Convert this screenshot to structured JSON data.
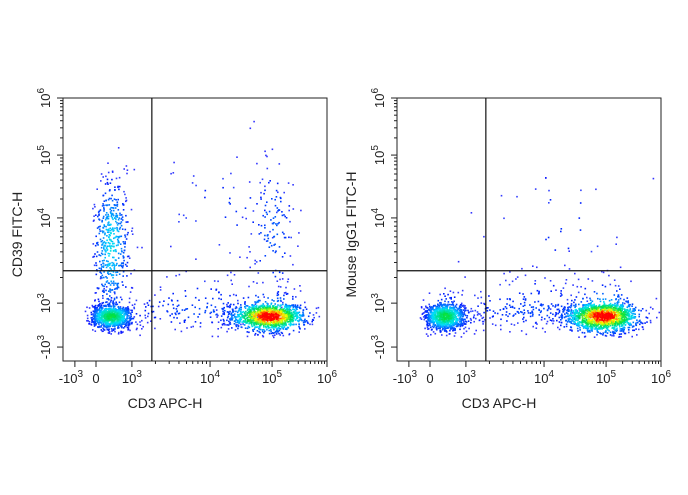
{
  "chart_data": [
    {
      "type": "scatter",
      "subtype": "flow-cytometry-density-dot-plot",
      "xlabel": "CD3 APC-H",
      "ylabel": "CD39 FITC-H",
      "x_scale": "biexponential",
      "y_scale": "biexponential",
      "xlim": [
        -1000,
        1000000
      ],
      "ylim": [
        -1000,
        1000000
      ],
      "x_ticks": [
        {
          "value": -1000,
          "base": "-10",
          "exp": "3"
        },
        {
          "value": 0,
          "base": "0",
          "exp": ""
        },
        {
          "value": 1000,
          "base": "10",
          "exp": "3"
        },
        {
          "value": 10000,
          "base": "10",
          "exp": "4"
        },
        {
          "value": 100000,
          "base": "10",
          "exp": "5"
        },
        {
          "value": 1000000,
          "base": "10",
          "exp": "6"
        }
      ],
      "y_ticks": [
        {
          "value": -1000,
          "base": "-10",
          "exp": "3"
        },
        {
          "value": 1000,
          "base": "10",
          "exp": "3"
        },
        {
          "value": 10000,
          "base": "10",
          "exp": "4"
        },
        {
          "value": 100000,
          "base": "10",
          "exp": "5"
        },
        {
          "value": 1000000,
          "base": "10",
          "exp": "6"
        }
      ],
      "quadrant_gate": {
        "x": 1800,
        "y": 2400
      },
      "grid": false,
      "legend": "none",
      "populations": [
        {
          "x": 400,
          "y": 600,
          "spread_decades": [
            0.3,
            0.2
          ],
          "events": 900,
          "peak_density": 0.45
        },
        {
          "x": 400,
          "y": 5000,
          "spread_decades": [
            0.25,
            0.45
          ],
          "events": 500,
          "peak_density": 0.25
        },
        {
          "x": 90000,
          "y": 600,
          "spread_decades": [
            0.3,
            0.22
          ],
          "events": 1400,
          "peak_density": 1.0
        },
        {
          "x": 100000,
          "y": 8000,
          "spread_decades": [
            0.2,
            0.5
          ],
          "events": 120,
          "peak_density": 0.1
        },
        {
          "x": 8000,
          "y": 800,
          "spread_decades": [
            0.6,
            0.3
          ],
          "events": 200,
          "peak_density": 0.08
        },
        {
          "x": 20000,
          "y": 15000,
          "spread_decades": [
            0.6,
            0.4
          ],
          "events": 50,
          "peak_density": 0.05
        }
      ]
    },
    {
      "type": "scatter",
      "subtype": "flow-cytometry-density-dot-plot",
      "xlabel": "CD3 APC-H",
      "ylabel": "Mouse IgG1 FITC-H",
      "x_scale": "biexponential",
      "y_scale": "biexponential",
      "xlim": [
        -1000,
        1000000
      ],
      "ylim": [
        -1000,
        1000000
      ],
      "x_ticks": [
        {
          "value": -1000,
          "base": "-10",
          "exp": "3"
        },
        {
          "value": 0,
          "base": "0",
          "exp": ""
        },
        {
          "value": 1000,
          "base": "10",
          "exp": "3"
        },
        {
          "value": 10000,
          "base": "10",
          "exp": "4"
        },
        {
          "value": 100000,
          "base": "10",
          "exp": "5"
        },
        {
          "value": 1000000,
          "base": "10",
          "exp": "6"
        }
      ],
      "y_ticks": [
        {
          "value": -1000,
          "base": "-10",
          "exp": "3"
        },
        {
          "value": 1000,
          "base": "10",
          "exp": "3"
        },
        {
          "value": 10000,
          "base": "10",
          "exp": "4"
        },
        {
          "value": 100000,
          "base": "10",
          "exp": "5"
        },
        {
          "value": 1000000,
          "base": "10",
          "exp": "6"
        }
      ],
      "quadrant_gate": {
        "x": 1800,
        "y": 2400
      },
      "grid": false,
      "legend": "none",
      "populations": [
        {
          "x": 400,
          "y": 600,
          "spread_decades": [
            0.3,
            0.22
          ],
          "events": 1000,
          "peak_density": 0.45
        },
        {
          "x": 90000,
          "y": 600,
          "spread_decades": [
            0.3,
            0.24
          ],
          "events": 1500,
          "peak_density": 1.0
        },
        {
          "x": 8000,
          "y": 800,
          "spread_decades": [
            0.6,
            0.3
          ],
          "events": 260,
          "peak_density": 0.08
        },
        {
          "x": 20000,
          "y": 9000,
          "spread_decades": [
            0.6,
            0.4
          ],
          "events": 30,
          "peak_density": 0.05
        }
      ]
    }
  ],
  "colors": {
    "axis": "#222222",
    "gate": "#111111",
    "density_scale": [
      "#0000ff",
      "#00e0ff",
      "#00e040",
      "#ffff00",
      "#ff0000"
    ]
  }
}
